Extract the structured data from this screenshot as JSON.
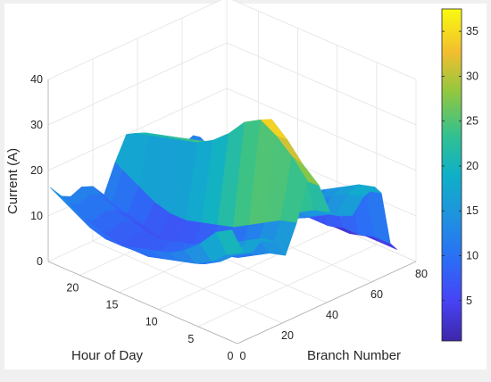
{
  "chart_data": {
    "type": "surface",
    "title": "",
    "xlabel": "Branch Number",
    "ylabel": "Hour of Day",
    "zlabel": "Current (A)",
    "xlim": [
      0,
      80
    ],
    "ylim": [
      0,
      24
    ],
    "zlim": [
      0,
      40
    ],
    "x_ticks": [
      "0",
      "20",
      "40",
      "60",
      "80"
    ],
    "y_ticks": [
      "0",
      "5",
      "10",
      "15",
      "20"
    ],
    "z_ticks": [
      "0",
      "10",
      "20",
      "30",
      "40"
    ],
    "grid": true,
    "colormap": "parula",
    "colorbar": {
      "range": [
        0.5,
        37.5
      ],
      "ticks": [
        "5",
        "10",
        "15",
        "20",
        "25",
        "30",
        "35"
      ]
    },
    "branches": [
      1,
      6,
      10,
      15,
      20,
      25,
      30,
      35,
      40,
      45,
      50,
      55,
      60,
      65,
      68,
      72,
      75
    ],
    "hours": [
      1,
      3,
      5,
      7,
      9,
      11,
      13,
      15,
      17,
      19,
      21,
      23,
      24
    ],
    "current": [
      [
        24,
        22,
        18,
        15,
        13,
        12,
        11,
        10,
        10,
        11,
        13,
        15,
        16
      ],
      [
        18,
        16,
        13,
        11,
        10,
        9,
        8,
        8,
        8,
        9,
        10,
        12,
        13
      ],
      [
        17,
        15,
        12,
        10,
        9,
        8,
        7,
        7,
        7,
        8,
        9,
        11,
        12
      ],
      [
        19,
        17,
        15,
        13,
        11,
        10,
        9,
        8,
        8,
        9,
        10,
        12,
        13
      ],
      [
        17,
        16,
        14,
        12,
        10,
        9,
        8,
        7,
        7,
        8,
        9,
        11,
        12
      ],
      [
        13,
        12,
        10,
        8,
        7,
        6,
        5,
        5,
        5,
        6,
        7,
        8,
        9
      ],
      [
        19,
        18,
        16,
        14,
        12,
        11,
        10,
        9,
        9,
        10,
        12,
        14,
        15
      ],
      [
        27,
        31,
        34,
        36,
        34,
        30,
        27,
        25,
        24,
        23,
        22,
        21,
        20
      ],
      [
        25,
        28,
        32,
        35,
        33,
        29,
        26,
        24,
        23,
        22,
        21,
        20,
        19
      ],
      [
        18,
        17,
        15,
        13,
        12,
        11,
        10,
        9,
        9,
        10,
        11,
        12,
        13
      ],
      [
        16,
        15,
        13,
        11,
        10,
        9,
        8,
        8,
        8,
        9,
        10,
        11,
        12
      ],
      [
        15,
        14,
        12,
        10,
        9,
        8,
        7,
        7,
        7,
        8,
        9,
        10,
        11
      ],
      [
        18,
        17,
        15,
        13,
        11,
        10,
        9,
        8,
        8,
        9,
        10,
        11,
        12
      ],
      [
        19,
        18,
        16,
        14,
        12,
        11,
        10,
        9,
        9,
        10,
        11,
        12,
        13
      ],
      [
        17,
        16,
        14,
        12,
        11,
        10,
        9,
        8,
        8,
        9,
        10,
        11,
        12
      ],
      [
        5,
        5,
        4,
        4,
        3,
        3,
        3,
        3,
        3,
        3,
        4,
        4,
        5
      ],
      [
        3,
        3,
        3,
        2,
        2,
        2,
        2,
        2,
        2,
        2,
        3,
        3,
        3
      ]
    ]
  }
}
